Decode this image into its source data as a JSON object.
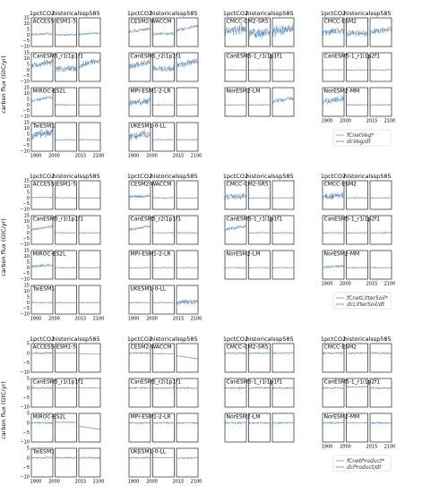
{
  "columns": [
    "1pctCO2",
    "historical",
    "ssp585"
  ],
  "models": [
    "ACCESS-ESM1-5",
    "CESM2-WACCM",
    "CMCC-CM2-SR5",
    "CMCC-ESM2",
    "CanESM5_r1i1p1f1",
    "CanESM5_r2i1p1f1",
    "CanESM5-1_r1i1p1f1",
    "CanESM5-1_r1i1p2f1",
    "MIROC-ES2L",
    "MPI-ESM1-2-LR",
    "NorESM2-LM",
    "NorESM2-MM",
    "TaiESM1",
    "UKESM1-0-LL"
  ],
  "model_labels": [
    "ACCESS-ESM1-5",
    "CESM2-WACCM",
    "CMCC-CM2-SR5",
    "CMCC-ESM2",
    "CanESM5_r1i1p1f1",
    "CanESM5_r2i1p1f1",
    "CanESM5-1_r1i1p1f1",
    "CanESM5-1_r1i1p2f1",
    "MIROC-ES2L",
    "MPI-ESM1-2-LR",
    "NorESM2-LM",
    "NorESM2-MM",
    "TaiESM1",
    "UKESM1-0-LL"
  ],
  "ylabel": "carbon flux (GtC/yr)",
  "x_tick_labels": [
    "1900",
    "2000",
    "2015",
    "2100"
  ],
  "yticks": [
    -10,
    -5,
    0,
    5,
    10,
    15
  ],
  "y_tick_labels": [
    "−10",
    "−5",
    "0",
    "5",
    "10",
    "15"
  ],
  "colors": {
    "flux": "#5b9bd5",
    "stock_change": "#1f3a5a"
  },
  "chart_data": [
    {
      "type": "line",
      "title": "",
      "ylabel": "carbon flux (GtC/yr)",
      "ylim": [
        -10,
        15
      ],
      "legend": [
        {
          "label": "fCnetVeg*"
        },
        {
          "label": "dcVeg/dt"
        }
      ],
      "legend_position": "bottom-right",
      "panels": [
        {
          "model": "ACCESS-ESM1-5",
          "experiment": "1pctCO2",
          "fCnetVeg_level": 1.0,
          "noise": 1.2
        },
        {
          "model": "ACCESS-ESM1-5",
          "experiment": "historical",
          "fCnetVeg_level": 0.5,
          "noise": 1.0
        },
        {
          "model": "ACCESS-ESM1-5",
          "experiment": "ssp585",
          "fCnetVeg_level": 1.5,
          "noise": 1.0
        },
        {
          "model": "CESM2-WACCM",
          "experiment": "1pctCO2",
          "fCnetVeg_level": 5.0,
          "noise": 1.5
        },
        {
          "model": "CESM2-WACCM",
          "experiment": "historical",
          "fCnetVeg_level": 2.0,
          "noise": 1.5
        },
        {
          "model": "CESM2-WACCM",
          "experiment": "ssp585",
          "fCnetVeg_level": 7.0,
          "noise": 1.5
        },
        {
          "model": "CMCC-CM2-SR5",
          "experiment": "1pctCO2",
          "fCnetVeg_level": 5.0,
          "noise": 5.0
        },
        {
          "model": "CMCC-CM2-SR5",
          "experiment": "historical",
          "fCnetVeg_level": 3.0,
          "noise": 5.0
        },
        {
          "model": "CMCC-CM2-SR5",
          "experiment": "ssp585",
          "fCnetVeg_level": 5.0,
          "noise": 5.0
        },
        {
          "model": "CMCC-ESM2",
          "experiment": "1pctCO2",
          "fCnetVeg_level": 3.5,
          "noise": 3.0
        },
        {
          "model": "CMCC-ESM2",
          "experiment": "historical",
          "fCnetVeg_level": 2.5,
          "noise": 3.0
        },
        {
          "model": "CMCC-ESM2",
          "experiment": "ssp585",
          "fCnetVeg_level": 4.5,
          "noise": 3.0
        },
        {
          "model": "CanESM5_r1i1p1f1",
          "experiment": "1pctCO2",
          "fCnetVeg_level": 6.0,
          "noise": 3.0
        },
        {
          "model": "CanESM5_r1i1p1f1",
          "experiment": "historical",
          "fCnetVeg_level": 2.0,
          "noise": 3.0
        },
        {
          "model": "CanESM5_r1i1p1f1",
          "experiment": "ssp585",
          "fCnetVeg_level": 7.0,
          "noise": 3.0
        },
        {
          "model": "CanESM5_r2i1p1f1",
          "experiment": "1pctCO2",
          "fCnetVeg_level": 6.0,
          "noise": 3.0
        },
        {
          "model": "CanESM5_r2i1p1f1",
          "experiment": "historical",
          "fCnetVeg_level": 2.0,
          "noise": 3.0
        },
        {
          "model": "CanESM5_r2i1p1f1",
          "experiment": "ssp585",
          "fCnetVeg_level": 7.0,
          "noise": 3.0
        },
        {
          "model": "MIROC-ES2L",
          "experiment": "1pctCO2",
          "fCnetVeg_level": 6.0,
          "noise": 1.5
        },
        {
          "model": "MPI-ESM1-2-LR",
          "experiment": "1pctCO2",
          "fCnetVeg_level": 3.0,
          "noise": 3.0
        },
        {
          "model": "NorESM2-LM",
          "experiment": "ssp585",
          "fCnetVeg_level": 5.0,
          "noise": 2.0
        },
        {
          "model": "NorESM2-MM",
          "experiment": "1pctCO2",
          "fCnetVeg_level": 5.0,
          "noise": 3.0
        },
        {
          "model": "TaiESM1",
          "experiment": "1pctCO2",
          "fCnetVeg_level": 6.0,
          "noise": 4.0
        },
        {
          "model": "UKESM1-0-LL",
          "experiment": "1pctCO2",
          "fCnetVeg_level": 5.0,
          "noise": 4.0
        }
      ]
    },
    {
      "type": "line",
      "title": "",
      "ylabel": "carbon flux (GtC/yr)",
      "ylim": [
        -10,
        15
      ],
      "legend": [
        {
          "label": "fCnetLitterSoil*"
        },
        {
          "label": "dcLitterSoil/dt"
        }
      ],
      "legend_position": "bottom-right",
      "panels": [
        {
          "model": "ACCESS-ESM1-5",
          "experiment": "1pctCO2",
          "fCnetLitterSoil_level": 0.5,
          "noise": 0.6
        },
        {
          "model": "CESM2-WACCM",
          "experiment": "1pctCO2",
          "fCnetLitterSoil_level": 1.5,
          "noise": 1.5
        },
        {
          "model": "CMCC-CM2-SR5",
          "experiment": "1pctCO2",
          "fCnetLitterSoil_level": 1.5,
          "noise": 3.0
        },
        {
          "model": "CMCC-ESM2",
          "experiment": "1pctCO2",
          "fCnetLitterSoil_level": 2.0,
          "noise": 3.0
        },
        {
          "model": "CanESM5_r1i1p1f1",
          "experiment": "1pctCO2",
          "fCnetLitterSoil_level": 5.0,
          "noise": 1.5
        },
        {
          "model": "CanESM5_r2i1p1f1",
          "experiment": "1pctCO2",
          "fCnetLitterSoil_level": 5.0,
          "noise": 1.5
        },
        {
          "model": "CanESM5-1_r1i1p1f1",
          "experiment": "1pctCO2",
          "fCnetLitterSoil_level": 5.0,
          "noise": 1.5
        },
        {
          "model": "MIROC-ES2L",
          "experiment": "1pctCO2",
          "fCnetLitterSoil_level": 2.0,
          "noise": 1.5
        },
        {
          "model": "NorESM2-MM",
          "experiment": "1pctCO2",
          "fCnetLitterSoil_level": 1.0,
          "noise": 1.5
        },
        {
          "model": "UKESM1-0-LL",
          "experiment": "ssp585",
          "fCnetLitterSoil_level": 0.5,
          "noise": 2.5
        }
      ]
    },
    {
      "type": "line",
      "title": "",
      "ylabel": "carbon flux (GtC/yr)",
      "ylim": [
        -10,
        5
      ],
      "legend": [
        {
          "label": "fCnetProduct*"
        },
        {
          "label": "dcProduct/dt"
        }
      ],
      "legend_position": "bottom-right",
      "panels": [
        {
          "model": "ACCESS-ESM1-5",
          "experiment": "historical",
          "fCnetProduct_level": 0.0,
          "noise": 0.2
        },
        {
          "model": "ACCESS-ESM1-5",
          "experiment": "ssp585",
          "fCnetProduct_level": -0.5,
          "noise": 0.2
        },
        {
          "model": "CESM2-WACCM",
          "experiment": "historical",
          "fCnetProduct_level": -0.5,
          "noise": 0.3
        },
        {
          "model": "CESM2-WACCM",
          "experiment": "ssp585",
          "fCnetProduct_level": -2.5,
          "noise": 0.3
        },
        {
          "model": "CanESM5_r1i1p1f1",
          "experiment": "historical",
          "fCnetProduct_level": 0.0,
          "noise": 0.3
        },
        {
          "model": "CanESM5_r1i1p1f1",
          "experiment": "ssp585",
          "fCnetProduct_level": 0.0,
          "noise": 0.2
        },
        {
          "model": "CanESM5-1_r1i1p2f1",
          "experiment": "historical",
          "fCnetProduct_level": 1.0,
          "noise": 0.4
        },
        {
          "model": "MIROC-ES2L",
          "experiment": "historical",
          "fCnetProduct_level": 0.5,
          "noise": 0.3
        },
        {
          "model": "MIROC-ES2L",
          "experiment": "ssp585",
          "fCnetProduct_level": -3.0,
          "noise": 0.4
        },
        {
          "model": "NorESM2-MM",
          "experiment": "historical",
          "fCnetProduct_level": 0.0,
          "noise": 0.3
        },
        {
          "model": "UKESM1-0-LL",
          "experiment": "historical",
          "fCnetProduct_level": 0.0,
          "noise": 0.2
        }
      ]
    }
  ]
}
